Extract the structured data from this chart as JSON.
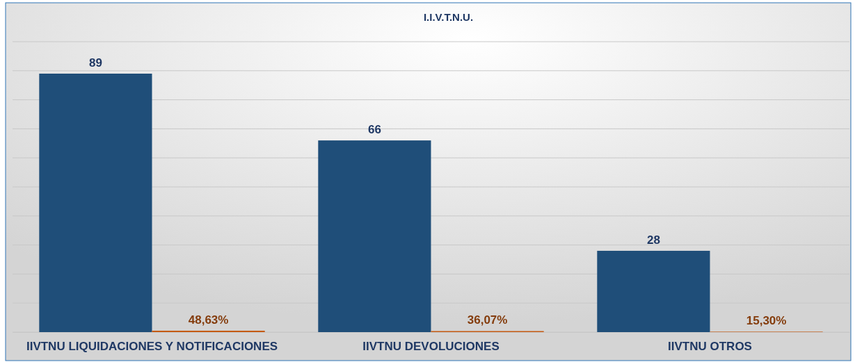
{
  "chart_data": {
    "type": "bar",
    "title": "I.I.V.T.N.U.",
    "categories": [
      "IIVTNU LIQUIDACIONES Y NOTIFICACIONES",
      "IIVTNU DEVOLUCIONES",
      "IIVTNU OTROS"
    ],
    "series": [
      {
        "color": "#1f4e79",
        "values": [
          89,
          66,
          28
        ],
        "value_labels": [
          "89",
          "66",
          "28"
        ]
      },
      {
        "color": "#c55a11",
        "values": [
          0.4863,
          0.3607,
          0.153
        ],
        "value_labels": [
          "48,63%",
          "36,07%",
          "15,30%"
        ]
      }
    ],
    "ylim": [
      0,
      100
    ],
    "yticks": [
      {
        "value": 0,
        "label": null
      },
      {
        "value": 10,
        "label": null
      },
      {
        "value": 20,
        "label": null
      },
      {
        "value": 30,
        "label": null
      },
      {
        "value": 40,
        "label": null
      },
      {
        "value": 50,
        "label": null
      },
      {
        "value": 60,
        "label": null
      },
      {
        "value": 70,
        "label": null
      },
      {
        "value": 80,
        "label": null
      },
      {
        "value": 90,
        "label": null
      },
      {
        "value": 100,
        "label": null
      }
    ],
    "grid": "y",
    "tick_labels": "x"
  }
}
